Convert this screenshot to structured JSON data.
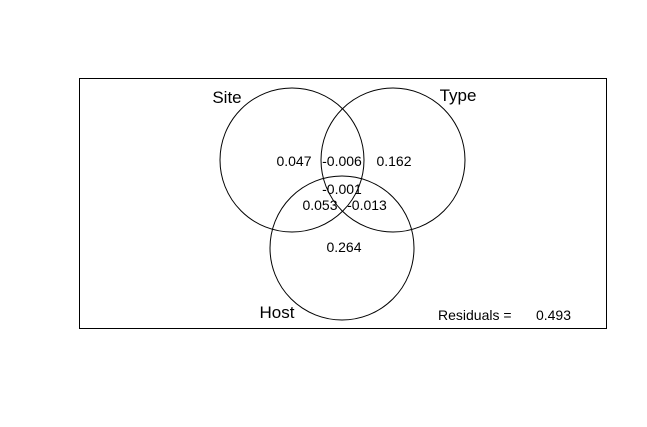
{
  "diagram": {
    "type": "venn",
    "sets": {
      "site": "Site",
      "type": "Type",
      "host": "Host"
    },
    "fractions": {
      "site_only": "0.047",
      "site_type": "-0.006",
      "type_only": "0.162",
      "site_type_host": "-0.001",
      "site_host": "0.053",
      "type_host": "-0.013",
      "host_only": "0.264"
    },
    "residuals": {
      "label": "Residuals =",
      "value": "0.493"
    }
  }
}
